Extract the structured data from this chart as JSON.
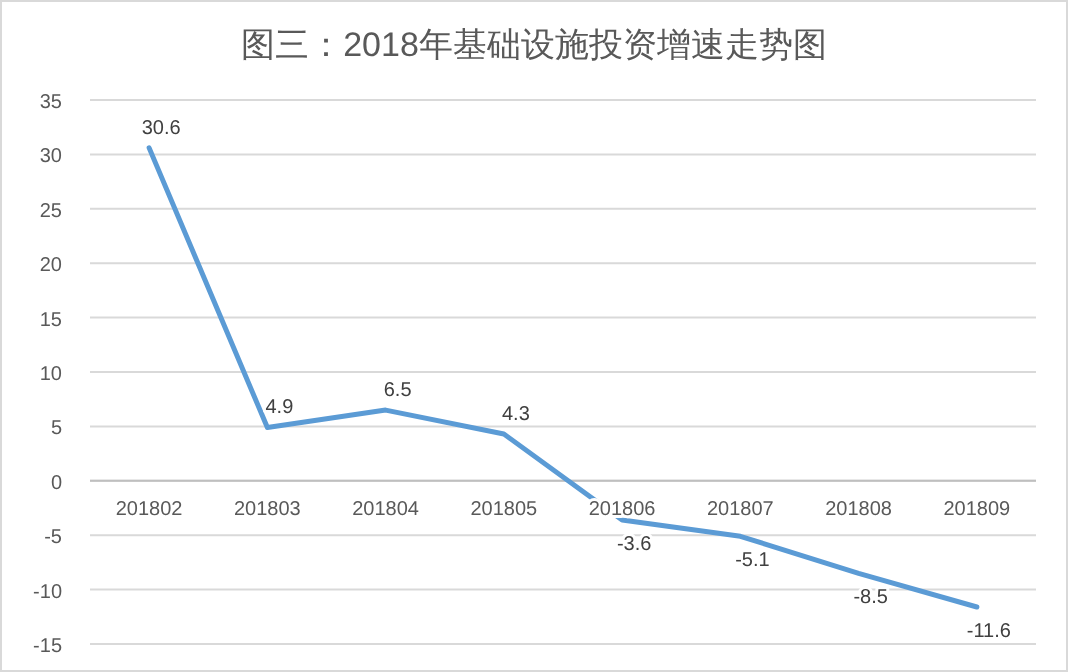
{
  "chart_data": {
    "type": "line",
    "title": "图三：2018年基础设施投资增速走势图",
    "categories": [
      "201802",
      "201803",
      "201804",
      "201805",
      "201806",
      "201807",
      "201808",
      "201809"
    ],
    "values": [
      30.6,
      4.9,
      6.5,
      4.3,
      -3.6,
      -5.1,
      -8.5,
      -11.6
    ],
    "color": "#5b9bd5",
    "ylim": [
      -15,
      35
    ],
    "yticks": [
      -15,
      -10,
      -5,
      0,
      5,
      10,
      15,
      20,
      25,
      30,
      35
    ],
    "grid": "y",
    "data_labels": true
  }
}
